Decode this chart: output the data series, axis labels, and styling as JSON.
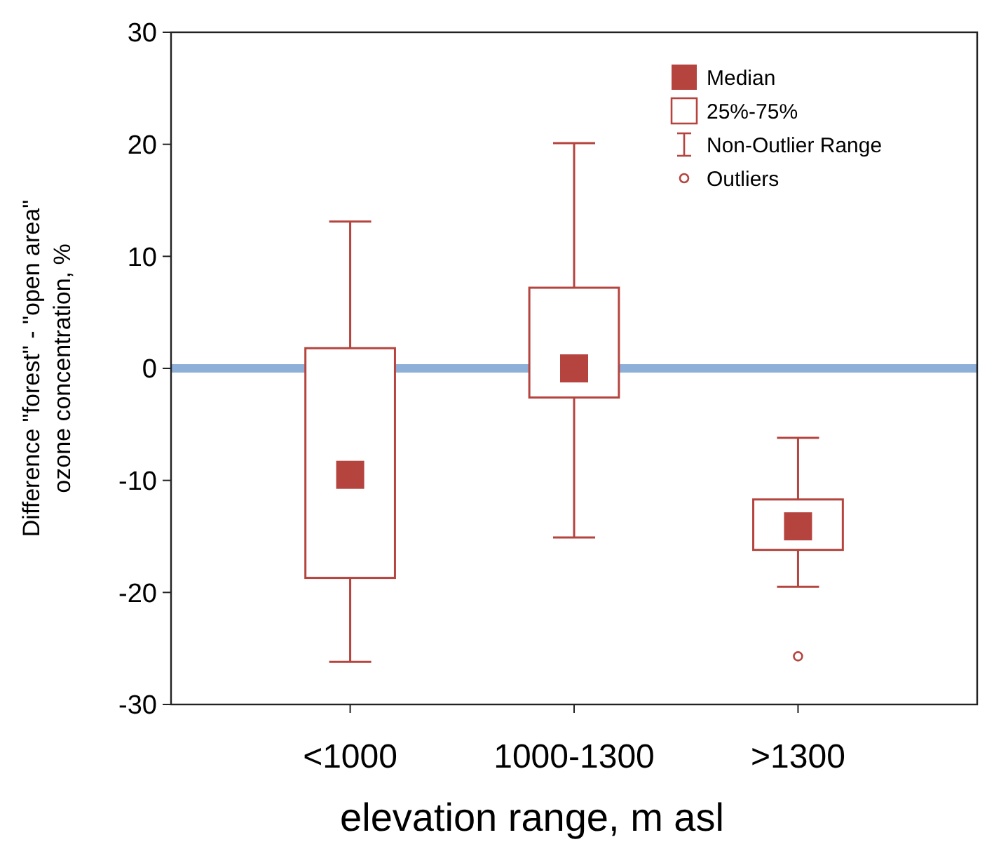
{
  "chart_data": {
    "type": "box",
    "xlabel": "elevation range, m asl",
    "ylabel": "Difference \"forest\" - \"open area\" ozone concentration, %",
    "categories": [
      "<1000",
      "1000-1300",
      ">1300"
    ],
    "boxes": [
      {
        "low": -26.2,
        "q1": -18.7,
        "median": -9.5,
        "q3": 1.8,
        "high": 13.1
      },
      {
        "low": -15.1,
        "q1": -2.6,
        "median": 0,
        "q3": 7.2,
        "high": 20.1
      },
      {
        "low": -19.5,
        "q1": -16.2,
        "median": -14.1,
        "q3": -11.7,
        "high": -6.2,
        "outliers": [
          -25.7
        ]
      }
    ],
    "color": "#b5443f",
    "ylim": [
      -30,
      30
    ],
    "yticks": [
      -30,
      -20,
      -10,
      0,
      10,
      20,
      30
    ],
    "grid": false,
    "ref_lines": [
      {
        "axis": "y",
        "value": 0,
        "color": "#8eb0d8"
      }
    ],
    "annotations": [
      "Median",
      "25%-75%",
      "Non-Outlier Range",
      "Outliers"
    ]
  }
}
